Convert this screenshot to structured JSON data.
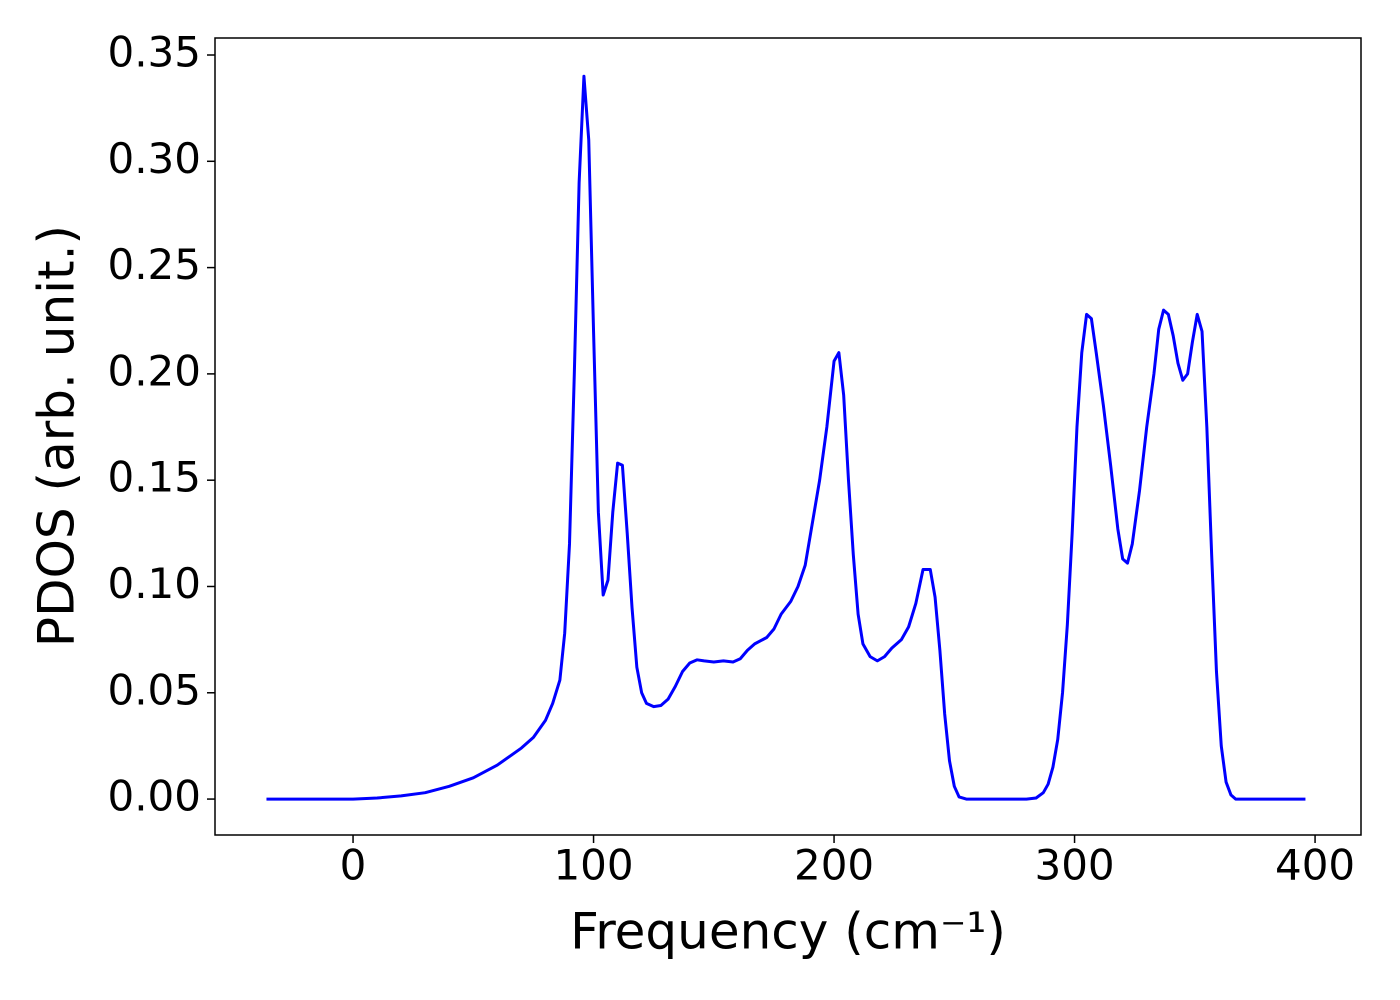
{
  "chart_data": {
    "type": "line",
    "ylabel": "PDOS (arb. unit.)",
    "xlabel": "Frequency (cm⁻¹)",
    "xlim": [
      -57.4,
      419.1
    ],
    "ylim": [
      -0.0169,
      0.358
    ],
    "xticks": [
      0,
      100,
      200,
      300,
      400
    ],
    "yticks": [
      {
        "value": 0,
        "label": "0.00"
      },
      {
        "value": 0.05,
        "label": "0.05"
      },
      {
        "value": 0.1,
        "label": "0.10"
      },
      {
        "value": 0.15,
        "label": "0.15"
      },
      {
        "value": 0.2,
        "label": "0.20"
      },
      {
        "value": 0.25,
        "label": "0.25"
      },
      {
        "value": 0.3,
        "label": "0.30"
      },
      {
        "value": 0.35,
        "label": "0.35"
      }
    ],
    "color": "#0000ff",
    "x": [
      -36,
      0,
      10,
      20,
      30,
      40,
      50,
      60,
      70,
      75,
      80,
      83,
      86,
      88,
      90,
      92,
      94,
      96,
      98,
      100,
      102,
      104,
      106,
      108,
      110,
      112,
      114,
      116,
      118,
      120,
      122,
      125,
      128,
      131,
      134,
      137,
      140,
      143,
      146,
      150,
      154,
      158,
      161,
      164,
      167,
      172,
      175,
      178,
      182,
      185,
      188,
      191,
      194,
      197,
      200,
      202,
      204,
      206,
      208,
      210,
      212,
      215,
      218,
      221,
      224,
      228,
      231,
      234,
      237,
      240,
      242,
      244,
      246,
      248,
      250,
      252,
      255,
      280,
      284,
      287,
      289,
      291,
      293,
      295,
      297,
      299,
      301,
      303,
      305,
      307,
      309,
      312,
      315,
      318,
      320,
      322,
      324,
      327,
      330,
      333,
      335,
      337,
      339,
      341,
      343,
      345,
      347,
      349,
      351,
      353,
      355,
      357,
      359,
      361,
      363,
      365,
      367,
      396
    ],
    "values": [
      0,
      0,
      0.0005,
      0.0015,
      0.003,
      0.006,
      0.01,
      0.016,
      0.024,
      0.029,
      0.037,
      0.045,
      0.056,
      0.078,
      0.12,
      0.2,
      0.29,
      0.34,
      0.31,
      0.22,
      0.135,
      0.096,
      0.103,
      0.135,
      0.158,
      0.157,
      0.125,
      0.09,
      0.062,
      0.05,
      0.045,
      0.0435,
      0.044,
      0.047,
      0.053,
      0.06,
      0.064,
      0.0655,
      0.065,
      0.0645,
      0.065,
      0.0645,
      0.066,
      0.07,
      0.073,
      0.076,
      0.08,
      0.087,
      0.093,
      0.1,
      0.11,
      0.13,
      0.15,
      0.175,
      0.206,
      0.21,
      0.19,
      0.15,
      0.115,
      0.087,
      0.073,
      0.067,
      0.065,
      0.067,
      0.071,
      0.075,
      0.081,
      0.092,
      0.108,
      0.108,
      0.095,
      0.07,
      0.04,
      0.018,
      0.006,
      0.001,
      0,
      0,
      0.0005,
      0.003,
      0.007,
      0.015,
      0.028,
      0.05,
      0.082,
      0.125,
      0.175,
      0.21,
      0.228,
      0.226,
      0.21,
      0.185,
      0.157,
      0.127,
      0.113,
      0.111,
      0.12,
      0.145,
      0.175,
      0.2,
      0.221,
      0.23,
      0.228,
      0.218,
      0.205,
      0.197,
      0.2,
      0.215,
      0.228,
      0.22,
      0.175,
      0.115,
      0.06,
      0.025,
      0.008,
      0.002,
      0,
      0
    ]
  }
}
